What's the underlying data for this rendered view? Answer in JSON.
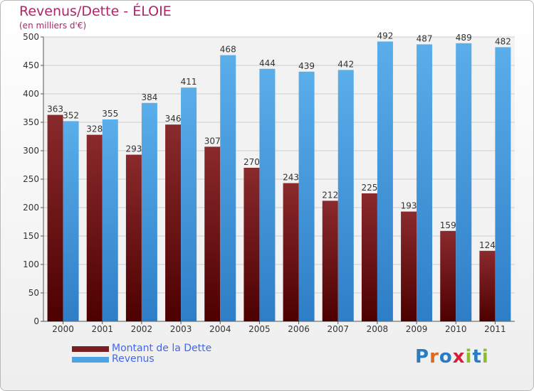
{
  "title": "Revenus/Dette - ÉLOIE",
  "subtitle": "(en milliers d'€)",
  "colors": {
    "debt": "#7a1f22",
    "revenue": "#4ea3e3",
    "title": "#b0246a",
    "legend_text": "#4466ee"
  },
  "legend": [
    {
      "label": "Montant de la Dette",
      "color": "#7a1f22"
    },
    {
      "label": "Revenus",
      "color": "#4ea3e3"
    }
  ],
  "logo": {
    "letters": [
      "P",
      "r",
      "o",
      "x",
      "i",
      "t",
      "i"
    ],
    "colors": [
      "#2b7bc1",
      "#e06a1b",
      "#2b7bc1",
      "#d81f3a",
      "#8cbd2a",
      "#2b7bc1",
      "#8cbd2a"
    ]
  },
  "chart_data": {
    "type": "bar",
    "categories": [
      "2000",
      "2001",
      "2002",
      "2003",
      "2004",
      "2005",
      "2006",
      "2007",
      "2008",
      "2009",
      "2010",
      "2011"
    ],
    "series": [
      {
        "name": "Montant de la Dette",
        "values": [
          363,
          328,
          293,
          346,
          307,
          270,
          243,
          212,
          225,
          193,
          159,
          124
        ]
      },
      {
        "name": "Revenus",
        "values": [
          352,
          355,
          384,
          411,
          468,
          444,
          439,
          442,
          492,
          487,
          489,
          482
        ]
      }
    ],
    "title": "Revenus/Dette - ÉLOIE",
    "xlabel": "",
    "ylabel": "",
    "ylim": [
      0,
      500
    ],
    "yticks": [
      0,
      50,
      100,
      150,
      200,
      250,
      300,
      350,
      400,
      450,
      500
    ],
    "grid": true,
    "legend_position": "bottom-left"
  }
}
